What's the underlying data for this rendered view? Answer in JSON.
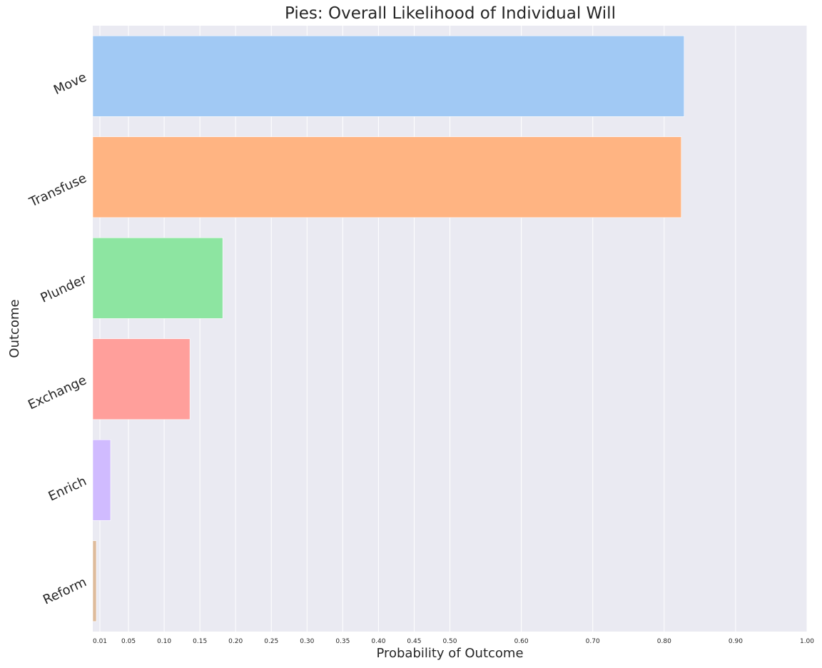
{
  "chart_data": {
    "type": "bar",
    "orientation": "horizontal",
    "title": "Pies: Overall Likelihood of Individual Will",
    "xlabel": "Probability of Outcome",
    "ylabel": "Outcome",
    "xlim": [
      0.0,
      1.0
    ],
    "xticks": [
      0.01,
      0.05,
      0.1,
      0.15,
      0.2,
      0.25,
      0.3,
      0.35,
      0.4,
      0.45,
      0.5,
      0.6,
      0.7,
      0.8,
      0.9,
      1.0
    ],
    "xtick_labels": [
      "0.01",
      "0.05",
      "0.10",
      "0.15",
      "0.20",
      "0.25",
      "0.30",
      "0.35",
      "0.40",
      "0.45",
      "0.50",
      "0.60",
      "0.70",
      "0.80",
      "0.90",
      "1.00"
    ],
    "categories": [
      "Move",
      "Transfuse",
      "Plunder",
      "Exchange",
      "Enrich",
      "Reform"
    ],
    "values": [
      0.828,
      0.824,
      0.182,
      0.136,
      0.025,
      0.005
    ],
    "colors": [
      "#a1c9f4",
      "#ffb482",
      "#8de5a1",
      "#ff9f9b",
      "#d0bbff",
      "#debb9b"
    ],
    "grid": true,
    "background": "#eaeaf2"
  }
}
